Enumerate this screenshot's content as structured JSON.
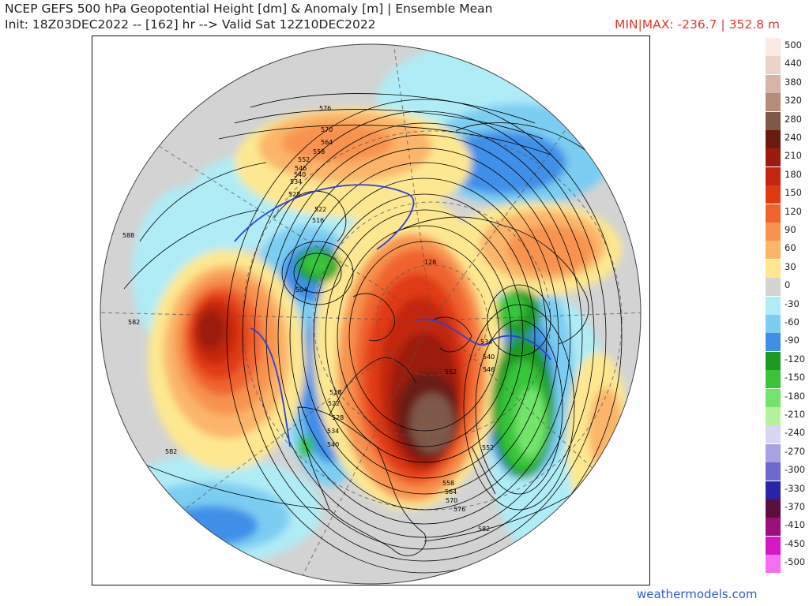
{
  "header": {
    "title_line1": "NCEP GEFS 500 hPa Geopotential Height [dm] & Anomaly [m] | Ensemble Mean",
    "title_line2": "Init: 18Z03DEC2022 -- [162] hr --> Valid Sat 12Z10DEC2022",
    "minmax": "MIN|MAX: -236.7 | 352.8 m"
  },
  "legend": [
    {
      "label": "500",
      "color": "#fbe9e4"
    },
    {
      "label": "440",
      "color": "#ecd2c8"
    },
    {
      "label": "380",
      "color": "#d6b5a6"
    },
    {
      "label": "320",
      "color": "#b58b7a"
    },
    {
      "label": "280",
      "color": "#7e5849"
    },
    {
      "label": "240",
      "color": "#6b1a12"
    },
    {
      "label": "210",
      "color": "#9c1b0e"
    },
    {
      "label": "180",
      "color": "#c4260f"
    },
    {
      "label": "150",
      "color": "#e03a12"
    },
    {
      "label": "120",
      "color": "#f0632d"
    },
    {
      "label": "90",
      "color": "#f7934f"
    },
    {
      "label": "60",
      "color": "#fbb56b"
    },
    {
      "label": "30",
      "color": "#fde891"
    },
    {
      "label": "0",
      "color": "#d3d3d3"
    },
    {
      "label": "-30",
      "color": "#b0ecf6"
    },
    {
      "label": "-60",
      "color": "#7ccdf2"
    },
    {
      "label": "-90",
      "color": "#3f8fe8"
    },
    {
      "label": "-120",
      "color": "#1c9a22"
    },
    {
      "label": "-150",
      "color": "#39c43a"
    },
    {
      "label": "-180",
      "color": "#72e46a"
    },
    {
      "label": "-210",
      "color": "#b4f39c"
    },
    {
      "label": "-240",
      "color": "#d8d6f2"
    },
    {
      "label": "-270",
      "color": "#a6a2e3"
    },
    {
      "label": "-300",
      "color": "#6e68cf"
    },
    {
      "label": "-330",
      "color": "#2b23a8"
    },
    {
      "label": "-370",
      "color": "#5a0f3d"
    },
    {
      "label": "-410",
      "color": "#9c0f78"
    },
    {
      "label": "-450",
      "color": "#d318c4"
    },
    {
      "label": "-500",
      "color": "#f56df0"
    }
  ],
  "contour_labels": [
    "576",
    "570",
    "564",
    "558",
    "552",
    "546",
    "540",
    "534",
    "528",
    "522",
    "516",
    "504",
    "588",
    "582",
    "582",
    "534",
    "540",
    "546",
    "552",
    "552",
    "558",
    "564",
    "570",
    "576",
    "582",
    "528",
    "522",
    "534",
    "540",
    "528",
    "128"
  ],
  "colors": {
    "title": "#222222",
    "minmax": "#e0392b",
    "source": "#2a5cdb"
  },
  "source": "weathermodels.com"
}
